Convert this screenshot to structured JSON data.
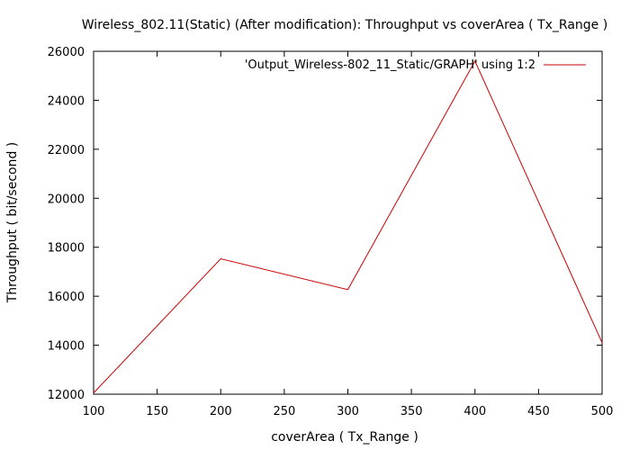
{
  "chart_data": {
    "type": "line",
    "title": "Wireless_802.11(Static) (After modification): Throughput vs coverArea ( Tx_Range )",
    "xlabel": "coverArea ( Tx_Range )",
    "ylabel": "Throughput ( bit/second )",
    "xlim": [
      100,
      500
    ],
    "ylim": [
      12000,
      26000
    ],
    "xticks": [
      100,
      150,
      200,
      250,
      300,
      350,
      400,
      450,
      500
    ],
    "yticks": [
      12000,
      14000,
      16000,
      18000,
      20000,
      22000,
      24000,
      26000
    ],
    "grid": false,
    "legend_position": "top-right",
    "series": [
      {
        "name": "'Output_Wireless-802_11_Static/GRAPH' using 1:2",
        "color": "#cc0000",
        "x": [
          100,
          200,
          300,
          400,
          500
        ],
        "y": [
          12050,
          17530,
          16270,
          25600,
          14100
        ]
      }
    ]
  }
}
